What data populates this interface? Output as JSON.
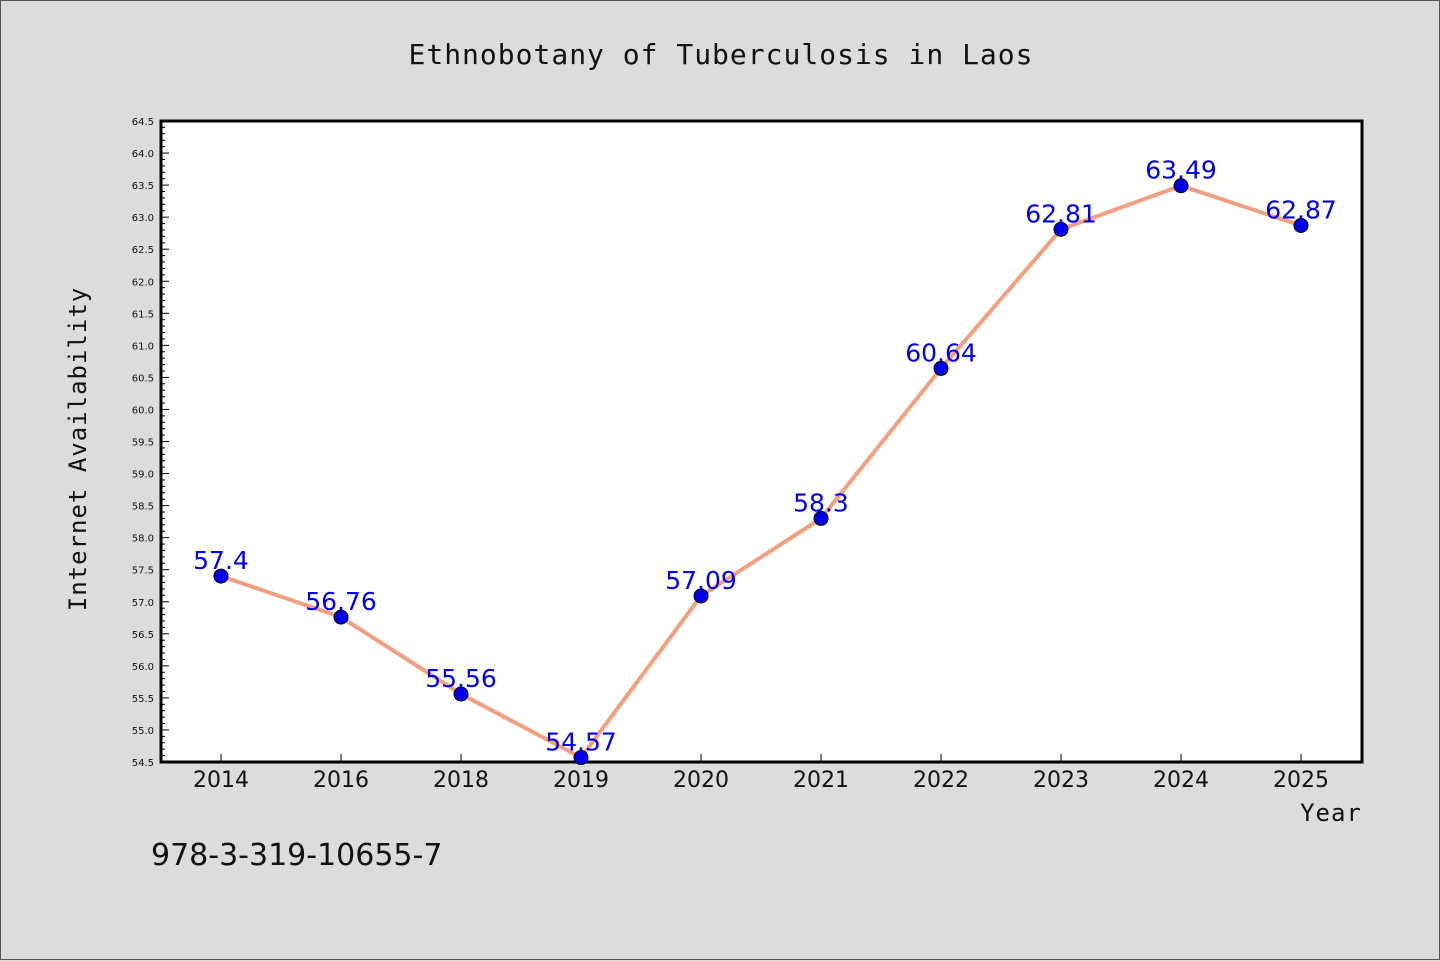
{
  "chart_data": {
    "type": "line",
    "title": "Ethnobotany of Tuberculosis in Laos",
    "xlabel": "Year",
    "ylabel": "Internet Availability",
    "categories": [
      "2014",
      "2016",
      "2018",
      "2019",
      "2020",
      "2021",
      "2022",
      "2023",
      "2024",
      "2025"
    ],
    "values": [
      57.4,
      56.76,
      55.56,
      54.57,
      57.09,
      58.3,
      60.64,
      62.81,
      63.49,
      62.87
    ],
    "data_labels": [
      "57.4",
      "56.76",
      "55.56",
      "54.57",
      "57.09",
      "58.3",
      "60.64",
      "62.81",
      "63.49",
      "62.87"
    ],
    "ylim": [
      54.5,
      64.5
    ],
    "ytick_labels": [
      "54.5",
      "55.0",
      "55.5",
      "56.0",
      "56.5",
      "57.0",
      "57.5",
      "58.0",
      "58.5",
      "59.0",
      "59.5",
      "60.0",
      "60.5",
      "61.0",
      "61.5",
      "62.0",
      "62.5",
      "63.0",
      "63.5",
      "64.0",
      "64.5"
    ],
    "grid": false,
    "line_color": "#f4a07e",
    "marker_color": "#0000ee",
    "label_color": "#0000ee"
  },
  "footer": {
    "text": "978-3-319-10655-7"
  }
}
